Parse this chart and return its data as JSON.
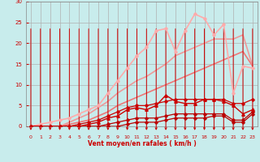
{
  "title": "",
  "xlabel": "Vent moyen/en rafales ( km/h )",
  "background_color": "#c8ecec",
  "grid_color": "#b0b0b0",
  "x": [
    0,
    1,
    2,
    3,
    4,
    5,
    6,
    7,
    8,
    9,
    10,
    11,
    12,
    13,
    14,
    15,
    16,
    17,
    18,
    19,
    20,
    21,
    22,
    23
  ],
  "lines": [
    {
      "y": [
        0,
        0,
        0,
        0,
        0,
        0,
        0,
        0,
        0,
        0,
        0.5,
        1,
        1,
        1,
        1.5,
        2,
        2,
        2,
        2,
        2.5,
        2.5,
        1,
        1,
        3
      ],
      "color": "#bb0000",
      "lw": 0.9,
      "marker": "D",
      "ms": 1.8,
      "zorder": 5
    },
    {
      "y": [
        0,
        0,
        0,
        0,
        0,
        0,
        0,
        0,
        0.5,
        1,
        1.5,
        2,
        2,
        2,
        2.5,
        3,
        3,
        3,
        3,
        3,
        3,
        1.5,
        1.5,
        3.5
      ],
      "color": "#bb0000",
      "lw": 0.9,
      "marker": "D",
      "ms": 1.8,
      "zorder": 5
    },
    {
      "y": [
        0,
        0,
        0,
        0,
        0,
        0,
        0.5,
        1,
        2,
        2.5,
        4,
        4.5,
        4,
        5,
        7.5,
        6,
        5.5,
        5.5,
        6.5,
        6.5,
        6,
        5,
        3,
        4
      ],
      "color": "#cc0000",
      "lw": 1.0,
      "marker": "^",
      "ms": 2.5,
      "zorder": 6
    },
    {
      "y": [
        0,
        0,
        0,
        0,
        0,
        0.5,
        1,
        1.5,
        2.5,
        3.5,
        4.5,
        5,
        5,
        5.5,
        6,
        6.5,
        6.5,
        6.5,
        6.5,
        6.5,
        6.5,
        5.5,
        5.5,
        6.5
      ],
      "color": "#cc0000",
      "lw": 0.9,
      "marker": "D",
      "ms": 1.8,
      "zorder": 5
    },
    {
      "y": [
        0,
        0,
        0,
        0,
        0.5,
        1,
        1.5,
        2.5,
        3.5,
        5,
        6,
        7,
        8,
        9,
        10,
        11,
        12,
        13,
        14,
        15,
        16,
        17,
        18,
        14.5
      ],
      "color": "#ee7777",
      "lw": 1.2,
      "marker": null,
      "ms": 0,
      "zorder": 3
    },
    {
      "y": [
        0,
        0,
        0,
        0,
        1,
        2,
        3,
        4.5,
        6,
        8,
        9.5,
        11,
        12,
        13.5,
        15,
        17,
        18,
        19,
        20,
        21,
        21,
        21,
        22,
        14.5
      ],
      "color": "#ee9999",
      "lw": 1.2,
      "marker": null,
      "ms": 0,
      "zorder": 3
    },
    {
      "y": [
        0,
        0.5,
        1,
        1.5,
        2,
        3,
        4,
        5,
        8,
        11,
        14,
        17,
        19,
        23,
        23.5,
        18,
        23,
        27,
        26,
        22,
        24.5,
        8,
        14.5,
        14
      ],
      "color": "#ffaaaa",
      "lw": 1.2,
      "marker": "D",
      "ms": 1.8,
      "zorder": 4
    }
  ],
  "ylim": [
    0,
    30
  ],
  "xlim": [
    -0.5,
    23.5
  ],
  "yticks": [
    0,
    5,
    10,
    15,
    20,
    25,
    30
  ],
  "xticks": [
    0,
    1,
    2,
    3,
    4,
    5,
    6,
    7,
    8,
    9,
    10,
    11,
    12,
    13,
    14,
    15,
    16,
    17,
    18,
    19,
    20,
    21,
    22,
    23
  ],
  "arrow_color": "#cc0000",
  "tick_label_color": "#cc0000",
  "xlabel_color": "#cc0000",
  "axis_color": "#888888"
}
